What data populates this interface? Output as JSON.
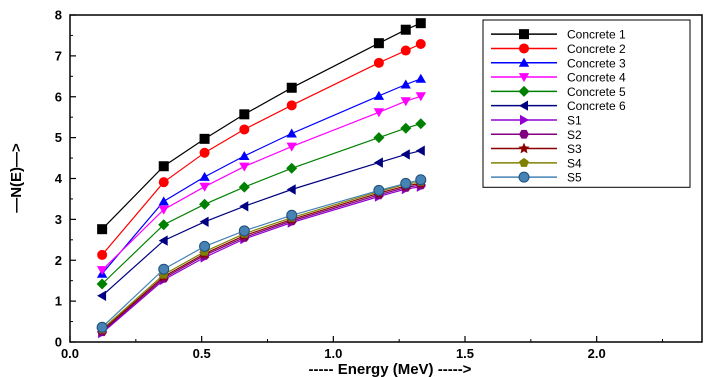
{
  "chart_data": {
    "type": "line",
    "title": "",
    "xlabel": "----- Energy (MeV) ----->",
    "ylabel": "—N(E)—>",
    "xlim": [
      0.0,
      2.4
    ],
    "ylim": [
      0,
      8
    ],
    "xticks": [
      "0.0",
      "0.5",
      "1.0",
      "1.5",
      "2.0"
    ],
    "yticks": [
      "0",
      "1",
      "2",
      "3",
      "4",
      "5",
      "6",
      "7",
      "8"
    ],
    "grid": false,
    "legend_position": "top-right",
    "x": [
      0.122,
      0.356,
      0.511,
      0.662,
      0.842,
      1.173,
      1.275,
      1.332
    ],
    "series": [
      {
        "name": "Concrete 1",
        "color": "#000000",
        "marker": "square",
        "values": [
          2.76,
          4.3,
          4.97,
          5.57,
          6.22,
          7.31,
          7.64,
          7.8
        ]
      },
      {
        "name": "Concrete 2",
        "color": "#ff0000",
        "marker": "circle",
        "values": [
          2.13,
          3.91,
          4.63,
          5.2,
          5.79,
          6.83,
          7.13,
          7.29
        ]
      },
      {
        "name": "Concrete 3",
        "color": "#0000ff",
        "marker": "triangle-up",
        "values": [
          1.67,
          3.44,
          4.04,
          4.55,
          5.1,
          6.02,
          6.3,
          6.44
        ]
      },
      {
        "name": "Concrete 4",
        "color": "#ff00ff",
        "marker": "triangle-down",
        "values": [
          1.76,
          3.24,
          3.8,
          4.29,
          4.78,
          5.62,
          5.89,
          6.01
        ]
      },
      {
        "name": "Concrete 5",
        "color": "#008000",
        "marker": "diamond",
        "values": [
          1.42,
          2.87,
          3.37,
          3.79,
          4.25,
          5.0,
          5.23,
          5.34
        ]
      },
      {
        "name": "Concrete 6",
        "color": "#000080",
        "marker": "triangle-left",
        "values": [
          1.13,
          2.48,
          2.94,
          3.32,
          3.73,
          4.39,
          4.59,
          4.68
        ]
      },
      {
        "name": "S1",
        "color": "#9400d3",
        "marker": "triangle-right",
        "values": [
          0.22,
          1.52,
          2.07,
          2.52,
          2.92,
          3.56,
          3.74,
          3.8
        ]
      },
      {
        "name": "S2",
        "color": "#800080",
        "marker": "hexagon",
        "values": [
          0.25,
          1.56,
          2.12,
          2.56,
          2.96,
          3.6,
          3.78,
          3.84
        ]
      },
      {
        "name": "S3",
        "color": "#8b0000",
        "marker": "star",
        "values": [
          0.28,
          1.6,
          2.16,
          2.6,
          3.0,
          3.64,
          3.82,
          3.88
        ]
      },
      {
        "name": "S4",
        "color": "#808000",
        "marker": "pentagon",
        "values": [
          0.31,
          1.65,
          2.21,
          2.65,
          3.04,
          3.68,
          3.86,
          3.92
        ]
      },
      {
        "name": "S5",
        "color": "#4682b4",
        "marker": "sphere",
        "values": [
          0.36,
          1.78,
          2.34,
          2.72,
          3.1,
          3.71,
          3.88,
          3.97
        ]
      }
    ]
  }
}
